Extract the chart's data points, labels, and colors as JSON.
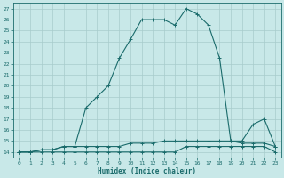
{
  "xlabel": "Humidex (Indice chaleur)",
  "xlim": [
    -0.5,
    23.5
  ],
  "ylim": [
    13.5,
    27.5
  ],
  "yticks": [
    14,
    15,
    16,
    17,
    18,
    19,
    20,
    21,
    22,
    23,
    24,
    25,
    26,
    27
  ],
  "xticks": [
    0,
    1,
    2,
    3,
    4,
    5,
    6,
    7,
    8,
    9,
    10,
    11,
    12,
    13,
    14,
    15,
    16,
    17,
    18,
    19,
    20,
    21,
    22,
    23
  ],
  "bg_color": "#c8e8e8",
  "grid_color": "#a8cccc",
  "line_color": "#1a6b6b",
  "line1_x": [
    0,
    1,
    2,
    3,
    4,
    5,
    6,
    7,
    8,
    9,
    10,
    11,
    12,
    13,
    14,
    15,
    16,
    17,
    18,
    19,
    20,
    21,
    22,
    23
  ],
  "line1_y": [
    14.0,
    14.0,
    14.2,
    14.2,
    14.5,
    14.5,
    18.0,
    19.0,
    20.0,
    22.5,
    24.2,
    26.0,
    26.0,
    26.0,
    25.5,
    27.0,
    26.5,
    25.5,
    22.5,
    15.0,
    15.0,
    16.5,
    17.0,
    14.5
  ],
  "line2_x": [
    0,
    1,
    2,
    3,
    4,
    5,
    6,
    7,
    8,
    9,
    10,
    11,
    12,
    13,
    14,
    15,
    16,
    17,
    18,
    19,
    20,
    21,
    22,
    23
  ],
  "line2_y": [
    14.0,
    14.0,
    14.2,
    14.2,
    14.5,
    14.5,
    14.5,
    14.5,
    14.5,
    14.5,
    14.8,
    14.8,
    14.8,
    15.0,
    15.0,
    15.0,
    15.0,
    15.0,
    15.0,
    15.0,
    14.8,
    14.8,
    14.8,
    14.5
  ],
  "line3_x": [
    0,
    1,
    2,
    3,
    4,
    5,
    6,
    7,
    8,
    9,
    10,
    11,
    12,
    13,
    14,
    15,
    16,
    17,
    18,
    19,
    20,
    21,
    22,
    23
  ],
  "line3_y": [
    14.0,
    14.0,
    14.0,
    14.0,
    14.0,
    14.0,
    14.0,
    14.0,
    14.0,
    14.0,
    14.0,
    14.0,
    14.0,
    14.0,
    14.0,
    14.5,
    14.5,
    14.5,
    14.5,
    14.5,
    14.5,
    14.5,
    14.5,
    14.0
  ]
}
